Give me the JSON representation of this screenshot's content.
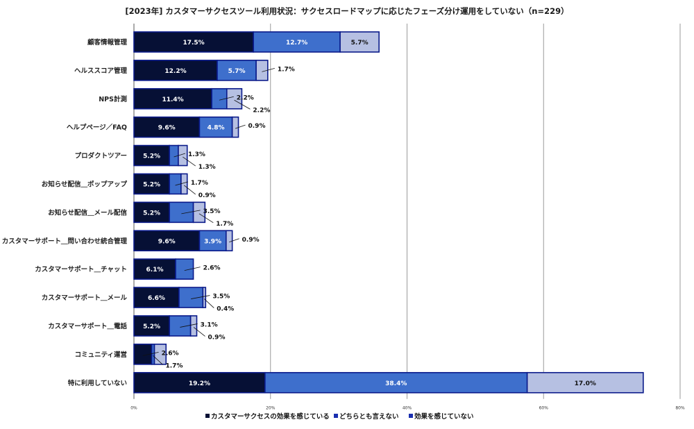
{
  "chart_data": {
    "type": "bar",
    "orientation": "horizontal",
    "stacked": true,
    "title": "[2023年] カスタマーサクセスツール利用状況：サクセスロードマップに応じたフェーズ分け運用をしていない（n=229）",
    "categories": [
      "顧客情報管理",
      "ヘルススコア管理",
      "NPS計測",
      "ヘルプページ／FAQ",
      "プロダクトツアー",
      "お知らせ配信＿ポップアップ",
      "お知らせ配信＿メール配信",
      "カスタマーサポート＿問い合わせ統合管理",
      "カスタマーサポート＿チャット",
      "カスタマーサポート＿メール",
      "カスタマーサポート＿電話",
      "コミュニティ運営",
      "特に利用していない"
    ],
    "series": [
      {
        "name": "カスタマーサクセスの効果を感じている",
        "color": "#061035",
        "values": [
          17.5,
          12.2,
          11.4,
          9.6,
          5.2,
          5.2,
          5.2,
          9.6,
          6.1,
          6.6,
          5.2,
          2.6,
          19.2
        ]
      },
      {
        "name": "どちらとも言えない",
        "color": "#3e6fcc",
        "values": [
          12.7,
          5.7,
          2.2,
          4.8,
          1.3,
          1.7,
          3.5,
          3.9,
          2.6,
          3.5,
          3.1,
          0.4,
          38.4
        ]
      },
      {
        "name": "効果を感じていない",
        "color": "#b6c0e2",
        "values": [
          5.7,
          1.7,
          2.2,
          0.9,
          1.3,
          0.9,
          1.7,
          0.9,
          0.0,
          0.4,
          0.9,
          1.7,
          17.0
        ]
      }
    ],
    "data_labels": [
      {
        "category": "顧客情報管理",
        "labels": [
          "17.5%",
          "12.7%",
          "5.7%"
        ]
      },
      {
        "category": "ヘルススコア管理",
        "labels": [
          "12.2%",
          "5.7%",
          "1.7%"
        ]
      },
      {
        "category": "NPS計測",
        "labels": [
          "11.4%",
          "2.2%",
          "2.2%"
        ]
      },
      {
        "category": "ヘルプページ／FAQ",
        "labels": [
          "9.6%",
          "4.8%",
          "0.9%"
        ]
      },
      {
        "category": "プロダクトツアー",
        "labels": [
          "5.2%",
          "1.3%",
          "1.3%"
        ]
      },
      {
        "category": "お知らせ配信＿ポップアップ",
        "labels": [
          "5.2%",
          "1.7%",
          "0.9%"
        ]
      },
      {
        "category": "お知らせ配信＿メール配信",
        "labels": [
          "5.2%",
          "3.5%",
          "1.7%"
        ]
      },
      {
        "category": "カスタマーサポート＿問い合わせ統合管理",
        "labels": [
          "9.6%",
          "3.9%",
          "0.9%"
        ]
      },
      {
        "category": "カスタマーサポート＿チャット",
        "labels": [
          "6.1%",
          "2.6%"
        ]
      },
      {
        "category": "カスタマーサポート＿メール",
        "labels": [
          "6.6%",
          "3.5%",
          "0.4%"
        ]
      },
      {
        "category": "カスタマーサポート＿電話",
        "labels": [
          "5.2%",
          "3.1%",
          "0.9%"
        ]
      },
      {
        "category": "コミュニティ運営",
        "labels": [
          "2.6%",
          "1.7%"
        ]
      },
      {
        "category": "特に利用していない",
        "labels": [
          "19.2%",
          "38.4%",
          "17.0%"
        ]
      }
    ],
    "xlim": [
      0,
      80
    ],
    "xticks": [
      "0%",
      "20%",
      "40%",
      "60%",
      "80%"
    ],
    "grid": true,
    "legend_position": "bottom"
  }
}
